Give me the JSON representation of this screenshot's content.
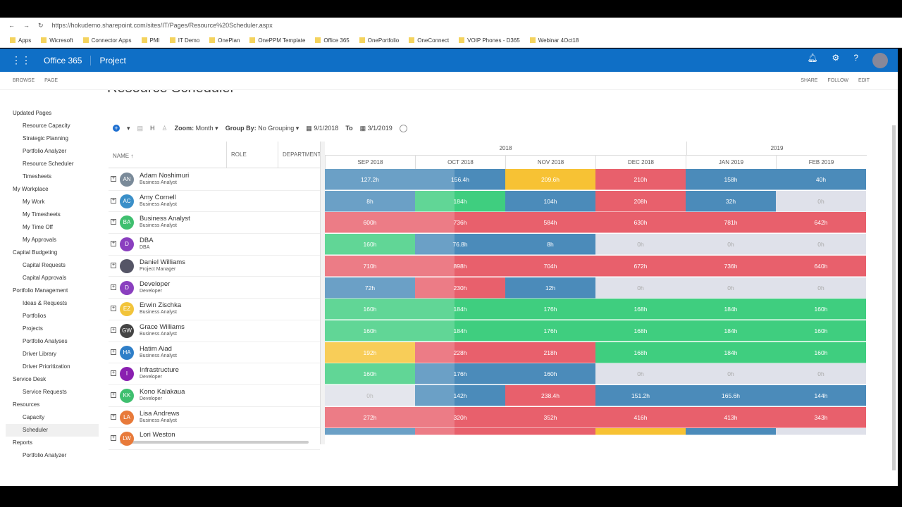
{
  "browser": {
    "url": "https://hokudemo.sharepoint.com/sites/IT/Pages/Resource%20Scheduler.aspx",
    "bookmarks": [
      "Apps",
      "Wicresoft",
      "Connector Apps",
      "PMI",
      "IT Demo",
      "OnePlan",
      "OnePPM Template",
      "Office 365",
      "OnePortfolio",
      "OneConnect",
      "VOIP Phones - D365",
      "Webinar 4Oct18"
    ]
  },
  "suite": {
    "brand": "Office 365",
    "app": "Project"
  },
  "ribbon": {
    "tabs": [
      "BROWSE",
      "PAGE"
    ],
    "actions": [
      "SHARE",
      "FOLLOW",
      "EDIT"
    ]
  },
  "page_title": "Resource Scheduler",
  "nav": [
    {
      "t": "Updated Pages",
      "l": 0
    },
    {
      "t": "Resource Capacity",
      "l": 1
    },
    {
      "t": "Strategic Planning",
      "l": 1
    },
    {
      "t": "Portfolio Analyzer",
      "l": 1
    },
    {
      "t": "Resource Scheduler",
      "l": 1
    },
    {
      "t": "Timesheets",
      "l": 1
    },
    {
      "t": "My Workplace",
      "l": 0
    },
    {
      "t": "My Work",
      "l": 1
    },
    {
      "t": "My Timesheets",
      "l": 1
    },
    {
      "t": "My Time Off",
      "l": 1
    },
    {
      "t": "My Approvals",
      "l": 1
    },
    {
      "t": "Capital Budgeting",
      "l": 0
    },
    {
      "t": "Capital Requests",
      "l": 1
    },
    {
      "t": "Capital Approvals",
      "l": 1
    },
    {
      "t": "Portfolio Management",
      "l": 0
    },
    {
      "t": "Ideas & Requests",
      "l": 1
    },
    {
      "t": "Portfolios",
      "l": 1
    },
    {
      "t": "Projects",
      "l": 1
    },
    {
      "t": "Portfolio Analyses",
      "l": 1
    },
    {
      "t": "Driver Library",
      "l": 1
    },
    {
      "t": "Driver Prioritization",
      "l": 1
    },
    {
      "t": "Service Desk",
      "l": 0
    },
    {
      "t": "Service Requests",
      "l": 1
    },
    {
      "t": "Resources",
      "l": 0
    },
    {
      "t": "Capacity",
      "l": 1
    },
    {
      "t": "Scheduler",
      "l": 1,
      "sel": true
    },
    {
      "t": "Reports",
      "l": 0
    },
    {
      "t": "Portfolio Analyzer",
      "l": 1
    }
  ],
  "toolbar": {
    "h": "H",
    "zoom_label": "Zoom:",
    "zoom": "Month",
    "group_label": "Group By:",
    "group": "No Grouping",
    "from": "9/1/2018",
    "to_label": "To",
    "to": "3/1/2019"
  },
  "columns": {
    "name": "NAME",
    "role": "ROLE",
    "dept": "DEPARTMENT"
  },
  "years": [
    "2018",
    "2019"
  ],
  "months": [
    "SEP 2018",
    "OCT 2018",
    "NOV 2018",
    "DEC 2018",
    "JAN 2019",
    "FEB 2019"
  ],
  "colors": {
    "b": "#4b8bba",
    "r": "#e8606c",
    "g": "#3fce7f",
    "y": "#f7c234",
    "e": "#dfe1ea",
    "past_overlay": "rgba(255,255,255,0.18)"
  },
  "rows": [
    {
      "i": "AN",
      "c": "#7a8a99",
      "n": "Adam Noshimuri",
      "r": "Business Analyst",
      "v": [
        "127.2h",
        "156.4h",
        "209.6h",
        "210h",
        "158h",
        "40h"
      ],
      "k": "bbyrbb"
    },
    {
      "i": "AC",
      "c": "#3a8fc8",
      "n": "Amy Cornell",
      "r": "Business Analyst",
      "v": [
        "8h",
        "184h",
        "104h",
        "208h",
        "32h",
        "0h"
      ],
      "k": "bgbrbe"
    },
    {
      "i": "BA",
      "c": "#3fbf6f",
      "n": "Business Analyst",
      "r": "Business Analyst",
      "v": [
        "600h",
        "736h",
        "584h",
        "630h",
        "781h",
        "642h"
      ],
      "k": "rrrrrr"
    },
    {
      "i": "D",
      "c": "#8a3fbf",
      "n": "DBA",
      "r": "DBA",
      "v": [
        "160h",
        "76.8h",
        "8h",
        "0h",
        "0h",
        "0h"
      ],
      "k": "gbbeee"
    },
    {
      "i": "",
      "c": "#556",
      "n": "Daniel Williams",
      "r": "Project Manager",
      "v": [
        "710h",
        "898h",
        "704h",
        "672h",
        "736h",
        "640h"
      ],
      "k": "rrrrrr"
    },
    {
      "i": "D",
      "c": "#8a3fbf",
      "n": "Developer",
      "r": "Developer",
      "v": [
        "72h",
        "230h",
        "12h",
        "0h",
        "0h",
        "0h"
      ],
      "k": "brbeee"
    },
    {
      "i": "EZ",
      "c": "#f2c43a",
      "n": "Erwin Zischka",
      "r": "Business Analyst",
      "v": [
        "160h",
        "184h",
        "176h",
        "168h",
        "184h",
        "160h"
      ],
      "k": "gggggg"
    },
    {
      "i": "GW",
      "c": "#444",
      "n": "Grace Williams",
      "r": "Business Analyst",
      "v": [
        "160h",
        "184h",
        "176h",
        "168h",
        "184h",
        "160h"
      ],
      "k": "gggggg"
    },
    {
      "i": "HA",
      "c": "#2f7fc8",
      "n": "Hatim Aiad",
      "r": "Business Analyst",
      "v": [
        "192h",
        "228h",
        "218h",
        "168h",
        "184h",
        "160h"
      ],
      "k": "yrrggg"
    },
    {
      "i": "I",
      "c": "#8a1fb0",
      "n": "Infrastructure",
      "r": "Developer",
      "v": [
        "160h",
        "176h",
        "160h",
        "0h",
        "0h",
        "0h"
      ],
      "k": "gbbeee"
    },
    {
      "i": "KK",
      "c": "#3fbf6f",
      "n": "Kono Kalakaua",
      "r": "Developer",
      "v": [
        "0h",
        "142h",
        "238.4h",
        "151.2h",
        "165.6h",
        "144h"
      ],
      "k": "ebrbbb"
    },
    {
      "i": "LA",
      "c": "#e87a3a",
      "n": "Lisa Andrews",
      "r": "Business Analyst",
      "v": [
        "272h",
        "320h",
        "352h",
        "416h",
        "413h",
        "343h"
      ],
      "k": "rrrrrr"
    },
    {
      "i": "LW",
      "c": "#e87a3a",
      "n": "Lori Weston",
      "r": "",
      "v": [
        "",
        "",
        "",
        "",
        "",
        ""
      ],
      "k": "brrybe"
    }
  ]
}
